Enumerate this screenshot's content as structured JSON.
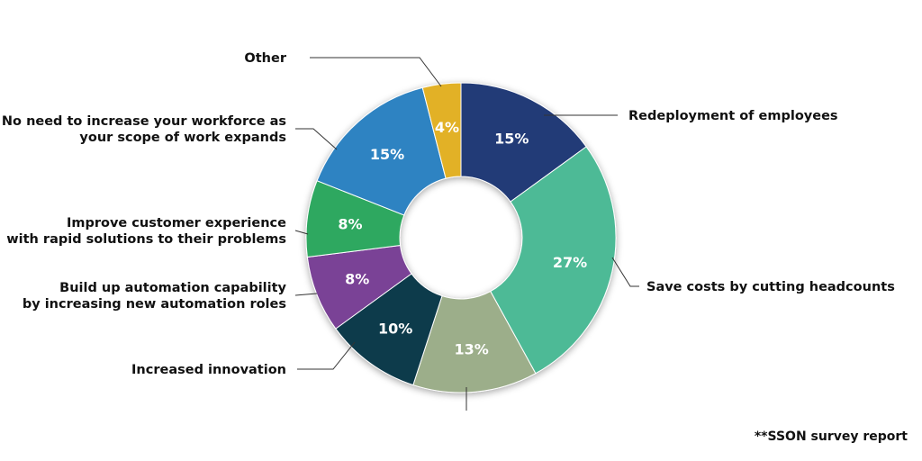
{
  "chart_data": {
    "type": "pie",
    "donut": true,
    "slices": [
      {
        "label": "Redeployment of employees",
        "value": 15,
        "display": "15%",
        "color": "#233a77",
        "text_color": "#ffffff"
      },
      {
        "label": "Save costs by cutting headcounts",
        "value": 27,
        "display": "27%",
        "color": "#4dba96",
        "text_color": "#ffffff"
      },
      {
        "label": "",
        "value": 13,
        "display": "13%",
        "color": "#9cae8a",
        "text_color": "#ffffff"
      },
      {
        "label": "Increased innovation",
        "value": 10,
        "display": "10%",
        "color": "#0e3a4c",
        "text_color": "#ffffff"
      },
      {
        "label": "Build up automation capability\nby increasing new automation roles",
        "value": 8,
        "display": "8%",
        "color": "#7a4396",
        "text_color": "#ffffff"
      },
      {
        "label": "Improve customer experience\nwith rapid solutions to their problems",
        "value": 8,
        "display": "8%",
        "color": "#2fa860",
        "text_color": "#ffffff"
      },
      {
        "label": "No need to increase your workforce as\nyour scope of work expands",
        "value": 15,
        "display": "15%",
        "color": "#2f83c2",
        "text_color": "#ffffff"
      },
      {
        "label": "Other",
        "value": 4,
        "display": "4%",
        "color": "#e2b128",
        "text_color": "#ffffff"
      }
    ],
    "legend": "none",
    "source_note": "**SSON survey report"
  }
}
